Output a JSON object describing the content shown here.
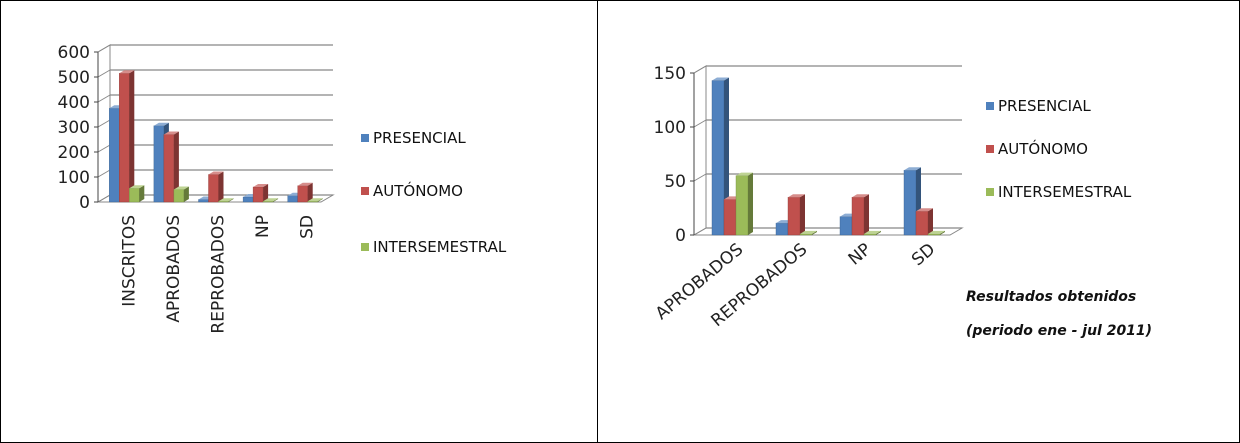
{
  "charts": [
    {
      "type": "bar",
      "categories": [
        "INSCRITOS",
        "APROBADOS",
        "REPROBADOS",
        "NP",
        "SD"
      ],
      "series": [
        {
          "name": "PRESENCIAL",
          "values": [
            375,
            305,
            10,
            20,
            25
          ]
        },
        {
          "name": "AUTÓNOMO",
          "values": [
            515,
            270,
            110,
            60,
            65
          ]
        },
        {
          "name": "INTERSEMESTRAL",
          "values": [
            55,
            50,
            3,
            3,
            3
          ]
        }
      ],
      "y_ticks": [
        "0",
        "100",
        "200",
        "300",
        "400",
        "500",
        "600"
      ],
      "ylim": [
        0,
        600
      ],
      "title": "",
      "xlabel": "",
      "ylabel": "",
      "grid": true,
      "legend_position": "right",
      "colors": [
        "#4F81BD",
        "#C0504D",
        "#9BBB59"
      ]
    },
    {
      "type": "bar",
      "categories": [
        "APROBADOS",
        "REPROBADOS",
        "NP",
        "SD"
      ],
      "series": [
        {
          "name": "PRESENCIAL",
          "values": [
            143,
            11,
            17,
            60
          ]
        },
        {
          "name": "AUTÓNOMO",
          "values": [
            33,
            35,
            35,
            22
          ]
        },
        {
          "name": "INTERSEMESTRAL",
          "values": [
            55,
            1,
            1,
            1
          ]
        }
      ],
      "y_ticks": [
        "0",
        "50",
        "100",
        "150"
      ],
      "ylim": [
        0,
        150
      ],
      "title": "",
      "xlabel": "",
      "ylabel": "",
      "grid": true,
      "legend_position": "right",
      "colors": [
        "#4F81BD",
        "#C0504D",
        "#9BBB59"
      ],
      "annotation_lines": [
        "Resultados obtenidos",
        "(periodo ene - jul 2011)"
      ]
    }
  ]
}
